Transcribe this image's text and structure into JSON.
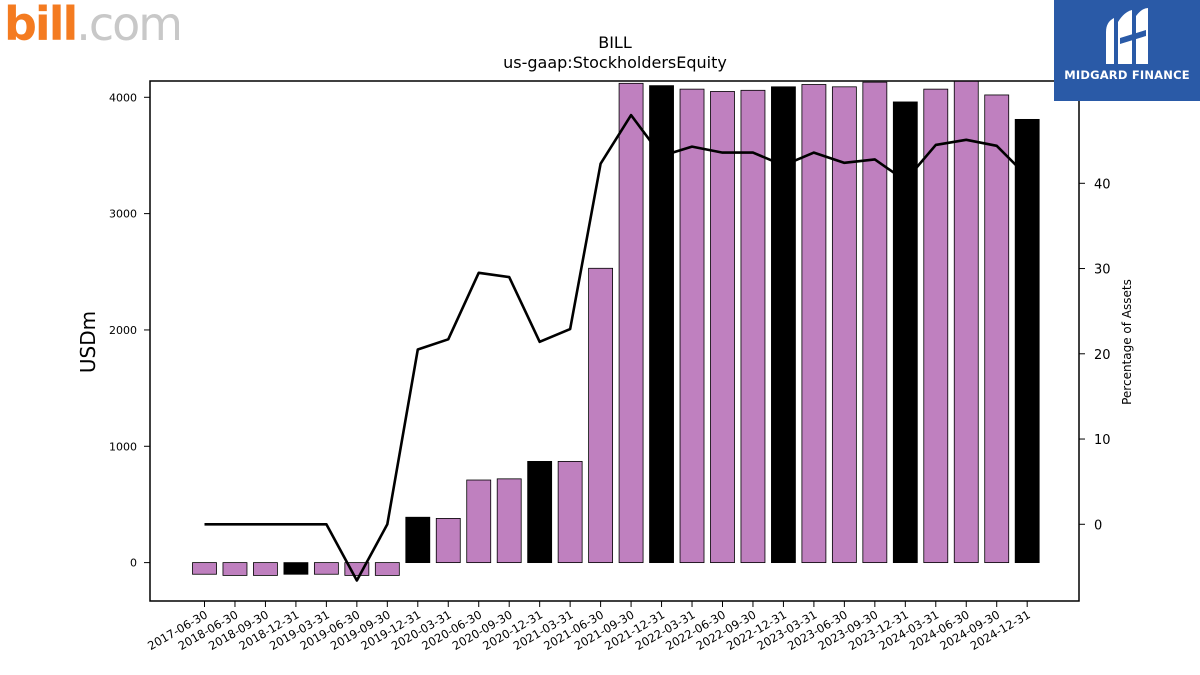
{
  "logos": {
    "left": {
      "text_bill": "bill",
      "text_com": ".com"
    },
    "right": {
      "text": "MIDGARD FINANCE"
    }
  },
  "chart_data": {
    "type": "bar",
    "title": "BILL",
    "subtitle": "us-gaap:StockholdersEquity",
    "ylabel": "USDm",
    "y2label": "Percentage of Assets",
    "ylim": [
      -330,
      4140
    ],
    "y2lim": [
      -9,
      52
    ],
    "yticks": [
      0,
      1000,
      2000,
      3000,
      4000
    ],
    "y2ticks": [
      0,
      10,
      20,
      30,
      40
    ],
    "categories": [
      "2017-06-30",
      "2018-06-30",
      "2018-09-30",
      "2018-12-31",
      "2019-03-31",
      "2019-06-30",
      "2019-09-30",
      "2019-12-31",
      "2020-03-31",
      "2020-06-30",
      "2020-09-30",
      "2020-12-31",
      "2021-03-31",
      "2021-06-30",
      "2021-09-30",
      "2021-12-31",
      "2022-03-31",
      "2022-06-30",
      "2022-09-30",
      "2022-12-31",
      "2023-03-31",
      "2023-06-30",
      "2023-09-30",
      "2023-12-31",
      "2024-03-31",
      "2024-06-30",
      "2024-09-30",
      "2024-12-31"
    ],
    "series": [
      {
        "kind": "bar",
        "values": [
          -100,
          -110,
          -110,
          -100,
          -100,
          -110,
          -110,
          390,
          380,
          710,
          720,
          870,
          870,
          2530,
          4120,
          4100,
          4070,
          4050,
          4060,
          4090,
          4110,
          4090,
          4130,
          3960,
          4070,
          4140,
          4020,
          3810
        ],
        "highlight": [
          false,
          false,
          false,
          true,
          false,
          false,
          false,
          true,
          false,
          false,
          false,
          true,
          false,
          false,
          false,
          true,
          false,
          false,
          false,
          true,
          false,
          false,
          false,
          true,
          false,
          false,
          false,
          true
        ]
      },
      {
        "kind": "line",
        "axis": "right",
        "values": [
          0,
          0,
          0,
          0,
          0,
          -6.6,
          0,
          20.5,
          21.7,
          29.5,
          29,
          21.4,
          22.9,
          42.3,
          48,
          43.2,
          44.3,
          43.6,
          43.6,
          42.1,
          43.6,
          42.4,
          42.8,
          40.3,
          44.5,
          45.1,
          44.4,
          40.8
        ]
      }
    ],
    "colors": {
      "bar": "#bf80bf",
      "bar_highlight": "#000000",
      "line": "#000000",
      "bill_orange": "#f47b20",
      "bill_gray": "#c8c8c8",
      "brand_blue": "#2a5aa7"
    }
  }
}
